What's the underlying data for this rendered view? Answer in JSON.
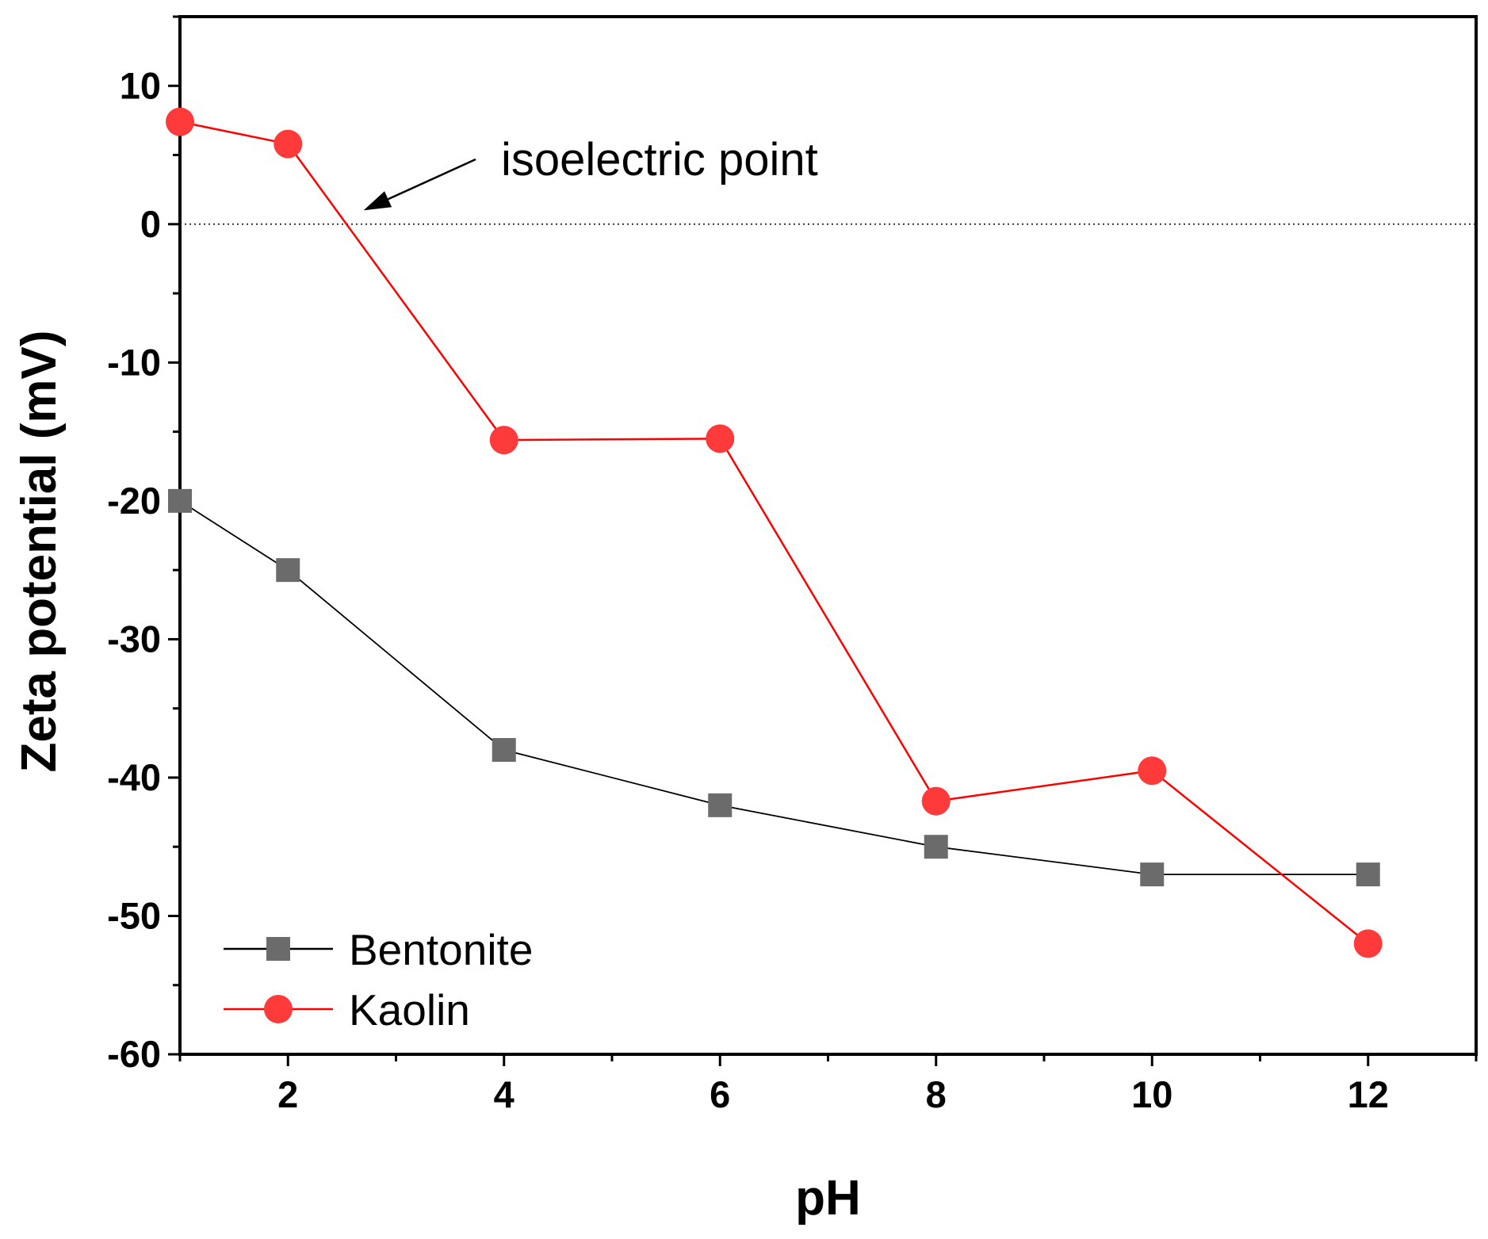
{
  "chart_data": {
    "type": "line",
    "title": "",
    "xlabel": "pH",
    "ylabel": "Zeta potential (mV)",
    "xlim": [
      1,
      13
    ],
    "ylim": [
      -60,
      15
    ],
    "x_ticks": [
      2,
      4,
      6,
      8,
      10,
      12
    ],
    "x_minor_ticks": [
      1,
      3,
      5,
      7,
      9,
      11,
      13
    ],
    "y_ticks": [
      10,
      0,
      -10,
      -20,
      -30,
      -40,
      -50,
      -60
    ],
    "y_minor_ticks": [
      15,
      5,
      -5,
      -15,
      -25,
      -35,
      -45,
      -55
    ],
    "grid": false,
    "legend_position": "bottom-left",
    "reference_line": {
      "y": 0,
      "style": "dotted"
    },
    "annotation": {
      "text": "isoelectric point",
      "target_x": 2.7,
      "target_y": 1
    },
    "series": [
      {
        "name": "Bentonite",
        "marker": "square",
        "marker_color": "#6b6b6b",
        "line_color": "#000000",
        "x": [
          1,
          2,
          4,
          6,
          8,
          10,
          12
        ],
        "values": [
          -20,
          -25,
          -38,
          -42,
          -45,
          -47,
          -47
        ]
      },
      {
        "name": "Kaolin",
        "marker": "circle",
        "marker_color": "#ff3a3a",
        "line_color": "#ff0000",
        "x": [
          1,
          2,
          4,
          6,
          8,
          10,
          12
        ],
        "values": [
          7.4,
          5.8,
          -15.6,
          -15.5,
          -41.7,
          -39.5,
          -52
        ]
      }
    ]
  }
}
